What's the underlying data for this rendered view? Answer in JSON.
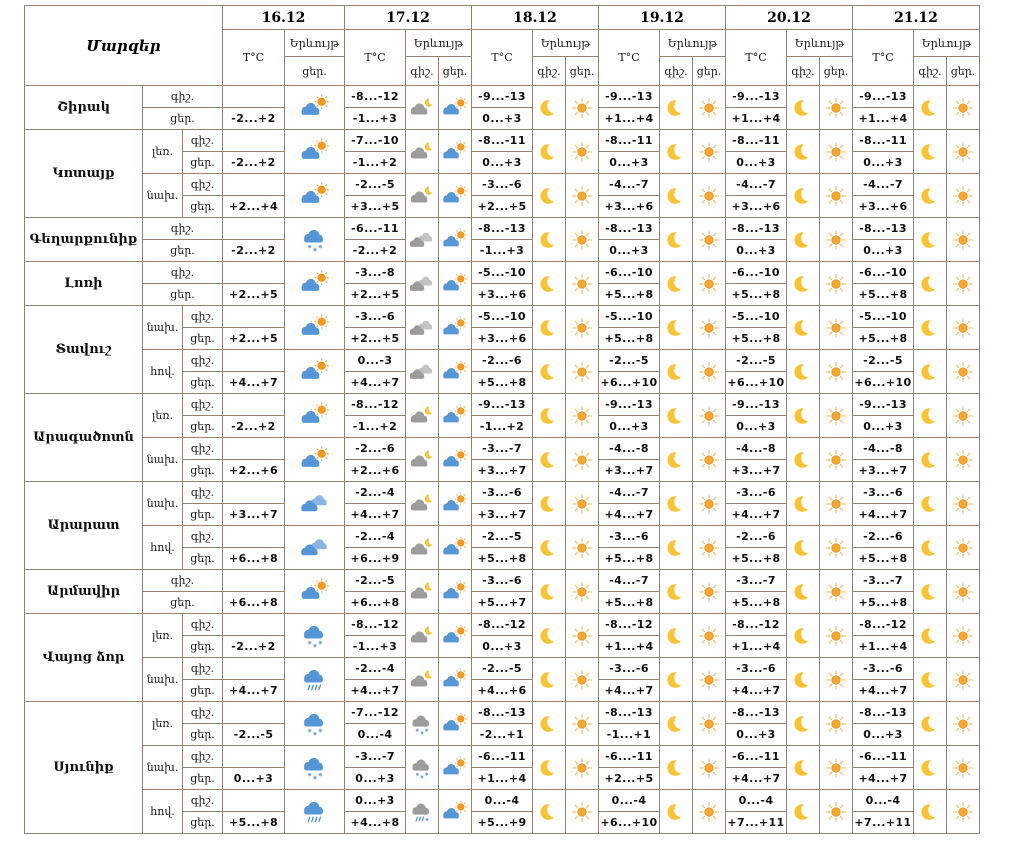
{
  "table": {
    "title": "Մարզեր",
    "temp_label": "T°C",
    "phenomenon_label": "Երևույթ",
    "night_label": "գիշ.",
    "day_label": "ցեր.",
    "dates": [
      "16.12",
      "17.12",
      "18.12",
      "19.12",
      "20.12",
      "21.12"
    ],
    "regions": [
      {
        "name": "Շիրակ",
        "rows": [
          {
            "zone": "",
            "cells": [
              {
                "day": "-2...+2",
                "day_icon": "sun-cloud"
              },
              {
                "night": "-8...-12",
                "day": "-1...+3",
                "night_icon": "cloud-moon-gray",
                "day_icon": "sun-cloud"
              },
              {
                "night": "-9...-13",
                "day": "0...+3",
                "night_icon": "moon",
                "day_icon": "sun"
              },
              {
                "night": "-9...-13",
                "day": "+1...+4",
                "night_icon": "moon",
                "day_icon": "sun"
              },
              {
                "night": "-9...-13",
                "day": "+1...+4",
                "night_icon": "moon",
                "day_icon": "sun"
              },
              {
                "night": "-9...-13",
                "day": "+1...+4",
                "night_icon": "moon",
                "day_icon": "sun"
              }
            ]
          }
        ]
      },
      {
        "name": "Կոտայք",
        "rows": [
          {
            "zone": "լեռ.",
            "cells": [
              {
                "day": "-2...+2",
                "day_icon": "sun-cloud"
              },
              {
                "night": "-7...-10",
                "day": "-1...+2",
                "night_icon": "cloud-moon-gray",
                "day_icon": "sun-cloud"
              },
              {
                "night": "-8...-11",
                "day": "0...+3",
                "night_icon": "moon",
                "day_icon": "sun"
              },
              {
                "night": "-8...-11",
                "day": "0...+3",
                "night_icon": "moon",
                "day_icon": "sun"
              },
              {
                "night": "-8...-11",
                "day": "0...+3",
                "night_icon": "moon",
                "day_icon": "sun"
              },
              {
                "night": "-8...-11",
                "day": "0...+3",
                "night_icon": "moon",
                "day_icon": "sun"
              }
            ]
          },
          {
            "zone": "նախ.",
            "cells": [
              {
                "day": "+2...+4",
                "day_icon": "sun-cloud"
              },
              {
                "night": "-2...-5",
                "day": "+3...+5",
                "night_icon": "cloud-moon-gray",
                "day_icon": "sun-cloud"
              },
              {
                "night": "-3...-6",
                "day": "+2...+5",
                "night_icon": "moon",
                "day_icon": "sun"
              },
              {
                "night": "-4...-7",
                "day": "+3...+6",
                "night_icon": "moon",
                "day_icon": "sun"
              },
              {
                "night": "-4...-7",
                "day": "+3...+6",
                "night_icon": "moon",
                "day_icon": "sun"
              },
              {
                "night": "-4...-7",
                "day": "+3...+6",
                "night_icon": "moon",
                "day_icon": "sun"
              }
            ]
          }
        ]
      },
      {
        "name": "Գեղարքունիք",
        "rows": [
          {
            "zone": "",
            "cells": [
              {
                "day": "-2...+2",
                "day_icon": "cloud-snow-blue"
              },
              {
                "night": "-6...-11",
                "day": "-2...+2",
                "night_icon": "clouds-gray",
                "day_icon": "sun-cloud"
              },
              {
                "night": "-8...-13",
                "day": "-1...+3",
                "night_icon": "moon",
                "day_icon": "sun"
              },
              {
                "night": "-8...-13",
                "day": "0...+3",
                "night_icon": "moon",
                "day_icon": "sun"
              },
              {
                "night": "-8...-13",
                "day": "0...+3",
                "night_icon": "moon",
                "day_icon": "sun"
              },
              {
                "night": "-8...-13",
                "day": "0...+3",
                "night_icon": "moon",
                "day_icon": "sun"
              }
            ]
          }
        ]
      },
      {
        "name": "Լոռի",
        "rows": [
          {
            "zone": "",
            "cells": [
              {
                "day": "+2...+5",
                "day_icon": "sun-cloud"
              },
              {
                "night": "-3...-8",
                "day": "+2...+5",
                "night_icon": "clouds-gray",
                "day_icon": "sun-cloud"
              },
              {
                "night": "-5...-10",
                "day": "+3...+6",
                "night_icon": "moon",
                "day_icon": "sun"
              },
              {
                "night": "-6...-10",
                "day": "+5...+8",
                "night_icon": "moon",
                "day_icon": "sun"
              },
              {
                "night": "-6...-10",
                "day": "+5...+8",
                "night_icon": "moon",
                "day_icon": "sun"
              },
              {
                "night": "-6...-10",
                "day": "+5...+8",
                "night_icon": "moon",
                "day_icon": "sun"
              }
            ]
          }
        ]
      },
      {
        "name": "Տավուշ",
        "rows": [
          {
            "zone": "նախ.",
            "cells": [
              {
                "day": "+2...+5",
                "day_icon": "sun-cloud"
              },
              {
                "night": "-3...-6",
                "day": "+2...+5",
                "night_icon": "clouds-gray",
                "day_icon": "sun-cloud"
              },
              {
                "night": "-5...-10",
                "day": "+3...+6",
                "night_icon": "moon",
                "day_icon": "sun"
              },
              {
                "night": "-5...-10",
                "day": "+5...+8",
                "night_icon": "moon",
                "day_icon": "sun"
              },
              {
                "night": "-5...-10",
                "day": "+5...+8",
                "night_icon": "moon",
                "day_icon": "sun"
              },
              {
                "night": "-5...-10",
                "day": "+5...+8",
                "night_icon": "moon",
                "day_icon": "sun"
              }
            ]
          },
          {
            "zone": "հով.",
            "cells": [
              {
                "day": "+4...+7",
                "day_icon": "sun-cloud"
              },
              {
                "night": "0...-3",
                "day": "+4...+7",
                "night_icon": "clouds-gray",
                "day_icon": "sun-cloud"
              },
              {
                "night": "-2...-6",
                "day": "+5...+8",
                "night_icon": "moon",
                "day_icon": "sun"
              },
              {
                "night": "-2...-5",
                "day": "+6...+10",
                "night_icon": "moon",
                "day_icon": "sun"
              },
              {
                "night": "-2...-5",
                "day": "+6...+10",
                "night_icon": "moon",
                "day_icon": "sun"
              },
              {
                "night": "-2...-5",
                "day": "+6...+10",
                "night_icon": "moon",
                "day_icon": "sun"
              }
            ]
          }
        ]
      },
      {
        "name": "Արագածոտն",
        "rows": [
          {
            "zone": "լեռ.",
            "cells": [
              {
                "day": "-2...+2",
                "day_icon": "sun-cloud"
              },
              {
                "night": "-8...-12",
                "day": "-1...+2",
                "night_icon": "cloud-moon-gray",
                "day_icon": "sun-cloud"
              },
              {
                "night": "-9...-13",
                "day": "-1...+2",
                "night_icon": "moon",
                "day_icon": "sun"
              },
              {
                "night": "-9...-13",
                "day": "0...+3",
                "night_icon": "moon",
                "day_icon": "sun"
              },
              {
                "night": "-9...-13",
                "day": "0...+3",
                "night_icon": "moon",
                "day_icon": "sun"
              },
              {
                "night": "-9...-13",
                "day": "0...+3",
                "night_icon": "moon",
                "day_icon": "sun"
              }
            ]
          },
          {
            "zone": "նախ.",
            "cells": [
              {
                "day": "+2...+6",
                "day_icon": "sun-cloud"
              },
              {
                "night": "-2...-6",
                "day": "+2...+6",
                "night_icon": "cloud-moon-gray",
                "day_icon": "sun-cloud"
              },
              {
                "night": "-3...-7",
                "day": "+3...+7",
                "night_icon": "moon",
                "day_icon": "sun"
              },
              {
                "night": "-4...-8",
                "day": "+3...+7",
                "night_icon": "moon",
                "day_icon": "sun"
              },
              {
                "night": "-4...-8",
                "day": "+3...+7",
                "night_icon": "moon",
                "day_icon": "sun"
              },
              {
                "night": "-4...-8",
                "day": "+3...+7",
                "night_icon": "moon",
                "day_icon": "sun"
              }
            ]
          }
        ]
      },
      {
        "name": "Արարատ",
        "rows": [
          {
            "zone": "նախ.",
            "cells": [
              {
                "day": "+3...+7",
                "day_icon": "clouds-blue"
              },
              {
                "night": "-2...-4",
                "day": "+4...+7",
                "night_icon": "cloud-moon-gray",
                "day_icon": "sun-cloud"
              },
              {
                "night": "-3...-6",
                "day": "+3...+7",
                "night_icon": "moon",
                "day_icon": "sun"
              },
              {
                "night": "-4...-7",
                "day": "+4...+7",
                "night_icon": "moon",
                "day_icon": "sun"
              },
              {
                "night": "-3...-6",
                "day": "+4...+7",
                "night_icon": "moon",
                "day_icon": "sun"
              },
              {
                "night": "-3...-6",
                "day": "+4...+7",
                "night_icon": "moon",
                "day_icon": "sun"
              }
            ]
          },
          {
            "zone": "հով.",
            "cells": [
              {
                "day": "+6...+8",
                "day_icon": "clouds-blue"
              },
              {
                "night": "-2...-4",
                "day": "+6...+9",
                "night_icon": "cloud-moon-gray",
                "day_icon": "sun-cloud"
              },
              {
                "night": "-2...-5",
                "day": "+5...+8",
                "night_icon": "moon",
                "day_icon": "sun"
              },
              {
                "night": "-3...-6",
                "day": "+5...+8",
                "night_icon": "moon",
                "day_icon": "sun"
              },
              {
                "night": "-2...-6",
                "day": "+5...+8",
                "night_icon": "moon",
                "day_icon": "sun"
              },
              {
                "night": "-2...-6",
                "day": "+5...+8",
                "night_icon": "moon",
                "day_icon": "sun"
              }
            ]
          }
        ]
      },
      {
        "name": "Արմավիր",
        "rows": [
          {
            "zone": "",
            "cells": [
              {
                "day": "+6...+8",
                "day_icon": "sun-cloud"
              },
              {
                "night": "-2...-5",
                "day": "+6...+8",
                "night_icon": "cloud-moon-gray",
                "day_icon": "sun-cloud"
              },
              {
                "night": "-3...-6",
                "day": "+5...+7",
                "night_icon": "moon",
                "day_icon": "sun"
              },
              {
                "night": "-4...-7",
                "day": "+5...+8",
                "night_icon": "moon",
                "day_icon": "sun"
              },
              {
                "night": "-3...-7",
                "day": "+5...+8",
                "night_icon": "moon",
                "day_icon": "sun"
              },
              {
                "night": "-3...-7",
                "day": "+5...+8",
                "night_icon": "moon",
                "day_icon": "sun"
              }
            ]
          }
        ]
      },
      {
        "name": "Վայոց ձոր",
        "rows": [
          {
            "zone": "լեռ.",
            "cells": [
              {
                "day": "-2...+2",
                "day_icon": "cloud-snow-blue"
              },
              {
                "night": "-8...-12",
                "day": "-1...+3",
                "night_icon": "cloud-moon-gray",
                "day_icon": "sun-cloud"
              },
              {
                "night": "-8...-12",
                "day": "0...+3",
                "night_icon": "moon",
                "day_icon": "sun"
              },
              {
                "night": "-8...-12",
                "day": "+1...+4",
                "night_icon": "moon",
                "day_icon": "sun"
              },
              {
                "night": "-8...-12",
                "day": "+1...+4",
                "night_icon": "moon",
                "day_icon": "sun"
              },
              {
                "night": "-8...-12",
                "day": "+1...+4",
                "night_icon": "moon",
                "day_icon": "sun"
              }
            ]
          },
          {
            "zone": "նախ.",
            "cells": [
              {
                "day": "+4...+7",
                "day_icon": "cloud-rain-blue"
              },
              {
                "night": "-2...-4",
                "day": "+4...+7",
                "night_icon": "cloud-moon-gray",
                "day_icon": "sun-cloud"
              },
              {
                "night": "-2...-5",
                "day": "+4...+6",
                "night_icon": "moon",
                "day_icon": "sun"
              },
              {
                "night": "-3...-6",
                "day": "+4...+7",
                "night_icon": "moon",
                "day_icon": "sun"
              },
              {
                "night": "-3...-6",
                "day": "+4...+7",
                "night_icon": "moon",
                "day_icon": "sun"
              },
              {
                "night": "-3...-6",
                "day": "+4...+7",
                "night_icon": "moon",
                "day_icon": "sun"
              }
            ]
          }
        ]
      },
      {
        "name": "Սյունիք",
        "rows": [
          {
            "zone": "լեռ.",
            "cells": [
              {
                "day": "-2...-5",
                "day_icon": "cloud-snow-blue"
              },
              {
                "night": "-7...-12",
                "day": "0...-4",
                "night_icon": "cloud-snow-gray",
                "day_icon": "sun-cloud"
              },
              {
                "night": "-8...-13",
                "day": "-2...+1",
                "night_icon": "moon",
                "day_icon": "sun"
              },
              {
                "night": "-8...-13",
                "day": "-1...+1",
                "night_icon": "moon",
                "day_icon": "sun"
              },
              {
                "night": "-8...-13",
                "day": "0...+3",
                "night_icon": "moon",
                "day_icon": "sun"
              },
              {
                "night": "-8...-13",
                "day": "0...+3",
                "night_icon": "moon",
                "day_icon": "sun"
              }
            ]
          },
          {
            "zone": "նախ.",
            "cells": [
              {
                "day": "0...+3",
                "day_icon": "cloud-snow-blue"
              },
              {
                "night": "-3...-7",
                "day": "0...+3",
                "night_icon": "cloud-snow-gray",
                "day_icon": "sun-cloud"
              },
              {
                "night": "-6...-11",
                "day": "+1...+4",
                "night_icon": "moon",
                "day_icon": "sun"
              },
              {
                "night": "-6...-11",
                "day": "+2...+5",
                "night_icon": "moon",
                "day_icon": "sun"
              },
              {
                "night": "-6...-11",
                "day": "+4...+7",
                "night_icon": "moon",
                "day_icon": "sun"
              },
              {
                "night": "-6...-11",
                "day": "+4...+7",
                "night_icon": "moon",
                "day_icon": "sun"
              }
            ]
          },
          {
            "zone": "հով.",
            "cells": [
              {
                "day": "+5...+8",
                "day_icon": "cloud-rain-blue"
              },
              {
                "night": "0...+3",
                "day": "+4...+8",
                "night_icon": "cloud-sleet-gray",
                "day_icon": "sun-cloud"
              },
              {
                "night": "0...-4",
                "day": "+5...+9",
                "night_icon": "moon",
                "day_icon": "sun"
              },
              {
                "night": "0...-4",
                "day": "+6...+10",
                "night_icon": "moon",
                "day_icon": "sun"
              },
              {
                "night": "0...-4",
                "day": "+7...+11",
                "night_icon": "moon",
                "day_icon": "sun"
              },
              {
                "night": "0...-4",
                "day": "+7...+11",
                "night_icon": "moon",
                "day_icon": "sun"
              }
            ]
          }
        ]
      }
    ]
  },
  "colors": {
    "border": "#96826e",
    "cloud_blue": "#5596d8",
    "cloud_blue_light": "#8ab4e2",
    "cloud_gray": "#9c9c9c",
    "cloud_gray_light": "#c3c3c3",
    "sun": "#f2991f",
    "sun_rays": "#f7b14a",
    "moon": "#fcc330",
    "precip_blue": "#4a8fd4",
    "background": "#ffffff"
  }
}
